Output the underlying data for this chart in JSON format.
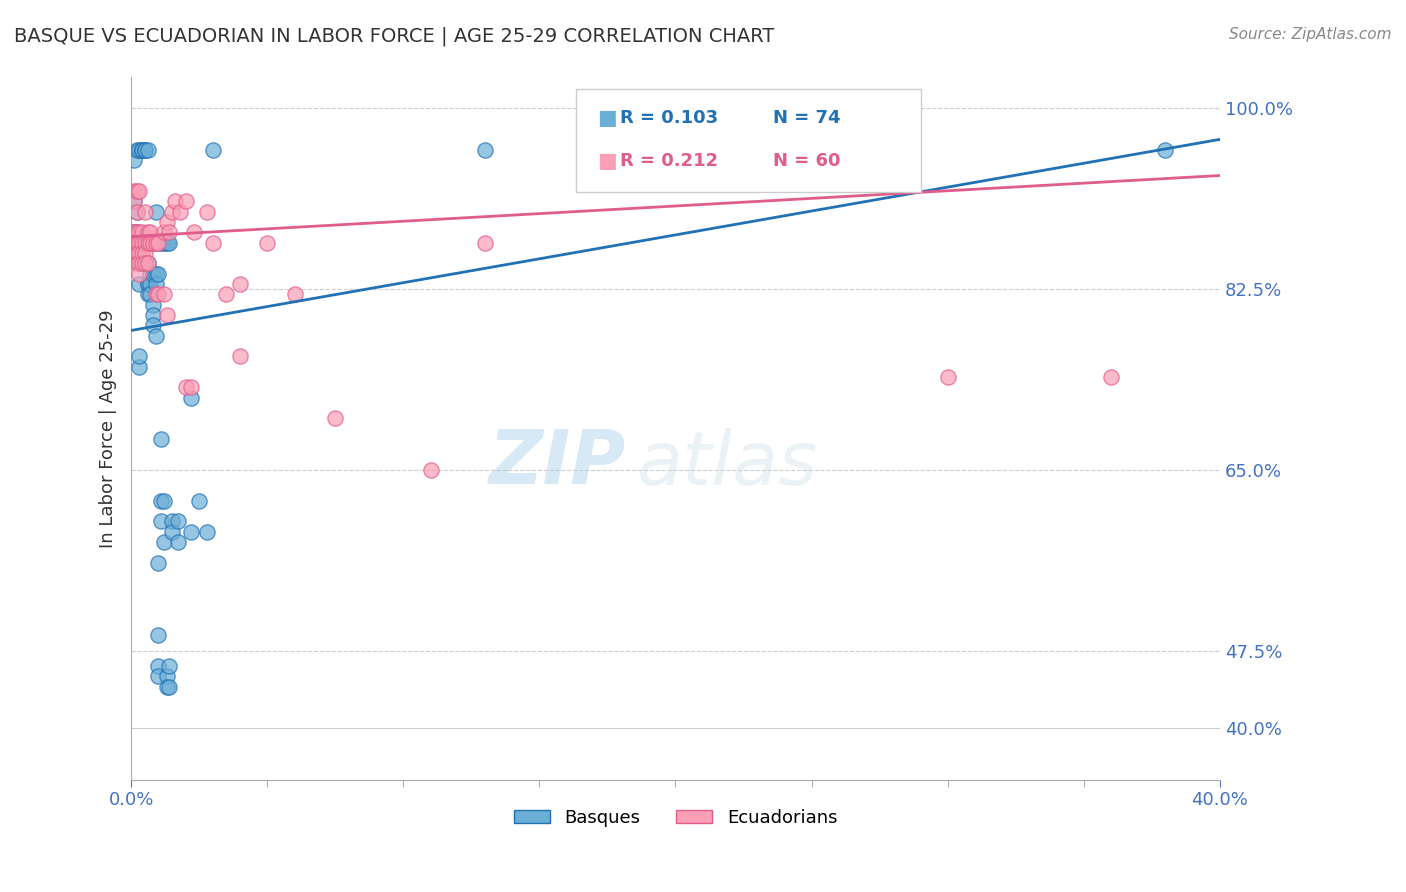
{
  "title": "BASQUE VS ECUADORIAN IN LABOR FORCE | AGE 25-29 CORRELATION CHART",
  "source": "Source: ZipAtlas.com",
  "ylabel": "In Labor Force | Age 25-29",
  "xlim": [
    0.0,
    0.4
  ],
  "ylim": [
    0.35,
    1.03
  ],
  "watermark_zip": "ZIP",
  "watermark_atlas": "atlas",
  "legend_blue_r": "R = 0.103",
  "legend_blue_n": "N = 74",
  "legend_pink_r": "R = 0.212",
  "legend_pink_n": "N = 60",
  "blue_color": "#6baed6",
  "pink_color": "#fa9fb5",
  "blue_line_color": "#2171b5",
  "pink_line_color": "#e05c8a",
  "blue_points": [
    [
      0.001,
      0.87
    ],
    [
      0.001,
      0.91
    ],
    [
      0.001,
      0.88
    ],
    [
      0.001,
      0.95
    ],
    [
      0.002,
      0.96
    ],
    [
      0.002,
      0.88
    ],
    [
      0.002,
      0.9
    ],
    [
      0.002,
      0.86
    ],
    [
      0.003,
      0.96
    ],
    [
      0.003,
      0.85
    ],
    [
      0.003,
      0.83
    ],
    [
      0.003,
      0.87
    ],
    [
      0.003,
      0.75
    ],
    [
      0.003,
      0.76
    ],
    [
      0.004,
      0.96
    ],
    [
      0.004,
      0.96
    ],
    [
      0.004,
      0.96
    ],
    [
      0.004,
      0.87
    ],
    [
      0.004,
      0.87
    ],
    [
      0.004,
      0.85
    ],
    [
      0.005,
      0.96
    ],
    [
      0.005,
      0.96
    ],
    [
      0.005,
      0.87
    ],
    [
      0.005,
      0.87
    ],
    [
      0.005,
      0.85
    ],
    [
      0.005,
      0.85
    ],
    [
      0.006,
      0.96
    ],
    [
      0.006,
      0.85
    ],
    [
      0.006,
      0.83
    ],
    [
      0.006,
      0.83
    ],
    [
      0.006,
      0.82
    ],
    [
      0.007,
      0.87
    ],
    [
      0.007,
      0.84
    ],
    [
      0.007,
      0.83
    ],
    [
      0.007,
      0.82
    ],
    [
      0.008,
      0.87
    ],
    [
      0.008,
      0.84
    ],
    [
      0.008,
      0.81
    ],
    [
      0.008,
      0.8
    ],
    [
      0.008,
      0.79
    ],
    [
      0.009,
      0.9
    ],
    [
      0.009,
      0.84
    ],
    [
      0.009,
      0.83
    ],
    [
      0.009,
      0.78
    ],
    [
      0.01,
      0.87
    ],
    [
      0.01,
      0.84
    ],
    [
      0.01,
      0.56
    ],
    [
      0.01,
      0.49
    ],
    [
      0.01,
      0.46
    ],
    [
      0.01,
      0.45
    ],
    [
      0.011,
      0.87
    ],
    [
      0.011,
      0.68
    ],
    [
      0.011,
      0.62
    ],
    [
      0.011,
      0.6
    ],
    [
      0.012,
      0.87
    ],
    [
      0.012,
      0.62
    ],
    [
      0.012,
      0.58
    ],
    [
      0.013,
      0.87
    ],
    [
      0.013,
      0.45
    ],
    [
      0.013,
      0.44
    ],
    [
      0.014,
      0.87
    ],
    [
      0.014,
      0.46
    ],
    [
      0.014,
      0.44
    ],
    [
      0.015,
      0.6
    ],
    [
      0.015,
      0.59
    ],
    [
      0.017,
      0.6
    ],
    [
      0.017,
      0.58
    ],
    [
      0.022,
      0.72
    ],
    [
      0.022,
      0.59
    ],
    [
      0.025,
      0.62
    ],
    [
      0.028,
      0.59
    ],
    [
      0.03,
      0.96
    ],
    [
      0.13,
      0.96
    ],
    [
      0.38,
      0.96
    ]
  ],
  "pink_points": [
    [
      0.001,
      0.92
    ],
    [
      0.001,
      0.91
    ],
    [
      0.001,
      0.88
    ],
    [
      0.001,
      0.88
    ],
    [
      0.001,
      0.87
    ],
    [
      0.001,
      0.86
    ],
    [
      0.002,
      0.92
    ],
    [
      0.002,
      0.9
    ],
    [
      0.002,
      0.88
    ],
    [
      0.002,
      0.87
    ],
    [
      0.002,
      0.86
    ],
    [
      0.002,
      0.85
    ],
    [
      0.003,
      0.92
    ],
    [
      0.003,
      0.88
    ],
    [
      0.003,
      0.87
    ],
    [
      0.003,
      0.86
    ],
    [
      0.003,
      0.85
    ],
    [
      0.003,
      0.84
    ],
    [
      0.004,
      0.88
    ],
    [
      0.004,
      0.87
    ],
    [
      0.004,
      0.86
    ],
    [
      0.004,
      0.85
    ],
    [
      0.005,
      0.9
    ],
    [
      0.005,
      0.87
    ],
    [
      0.005,
      0.86
    ],
    [
      0.005,
      0.85
    ],
    [
      0.006,
      0.88
    ],
    [
      0.006,
      0.87
    ],
    [
      0.006,
      0.85
    ],
    [
      0.007,
      0.88
    ],
    [
      0.007,
      0.87
    ],
    [
      0.008,
      0.87
    ],
    [
      0.009,
      0.87
    ],
    [
      0.009,
      0.82
    ],
    [
      0.01,
      0.87
    ],
    [
      0.01,
      0.82
    ],
    [
      0.012,
      0.88
    ],
    [
      0.012,
      0.82
    ],
    [
      0.013,
      0.89
    ],
    [
      0.013,
      0.8
    ],
    [
      0.014,
      0.88
    ],
    [
      0.015,
      0.9
    ],
    [
      0.016,
      0.91
    ],
    [
      0.018,
      0.9
    ],
    [
      0.02,
      0.91
    ],
    [
      0.02,
      0.73
    ],
    [
      0.022,
      0.73
    ],
    [
      0.023,
      0.88
    ],
    [
      0.028,
      0.9
    ],
    [
      0.03,
      0.87
    ],
    [
      0.035,
      0.82
    ],
    [
      0.04,
      0.83
    ],
    [
      0.04,
      0.76
    ],
    [
      0.05,
      0.87
    ],
    [
      0.06,
      0.82
    ],
    [
      0.075,
      0.7
    ],
    [
      0.11,
      0.65
    ],
    [
      0.13,
      0.87
    ],
    [
      0.3,
      0.74
    ],
    [
      0.36,
      0.74
    ]
  ],
  "blue_line_x": [
    0.0,
    0.4
  ],
  "blue_line_y": [
    0.785,
    0.97
  ],
  "pink_line_x": [
    0.0,
    0.4
  ],
  "pink_line_y": [
    0.876,
    0.935
  ],
  "grid_color": "#cccccc",
  "title_color": "#333333",
  "tick_label_color": "#4472c4",
  "background_color": "#ffffff",
  "legend_label_basques": "Basques",
  "legend_label_ecuadorians": "Ecuadorians"
}
